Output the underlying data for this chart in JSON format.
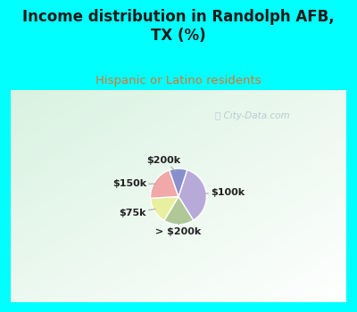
{
  "title": "Income distribution in Randolph AFB,\nTX (%)",
  "subtitle": "Hispanic or Latino residents",
  "title_color": "#1a1a1a",
  "subtitle_color": "#e07030",
  "bg_cyan": "#00ffff",
  "chart_bg_colors": [
    "#c8e8d8",
    "#e8f4ee",
    "#f8fffc"
  ],
  "labels": [
    "$100k",
    "> $200k",
    "$75k",
    "$150k",
    "$200k"
  ],
  "values": [
    35,
    17,
    15,
    20,
    10
  ],
  "colors": [
    "#b8aad8",
    "#b0c898",
    "#e8f0a0",
    "#f0a8a8",
    "#8890cc"
  ],
  "watermark": "City-Data.com",
  "startangle": 72
}
